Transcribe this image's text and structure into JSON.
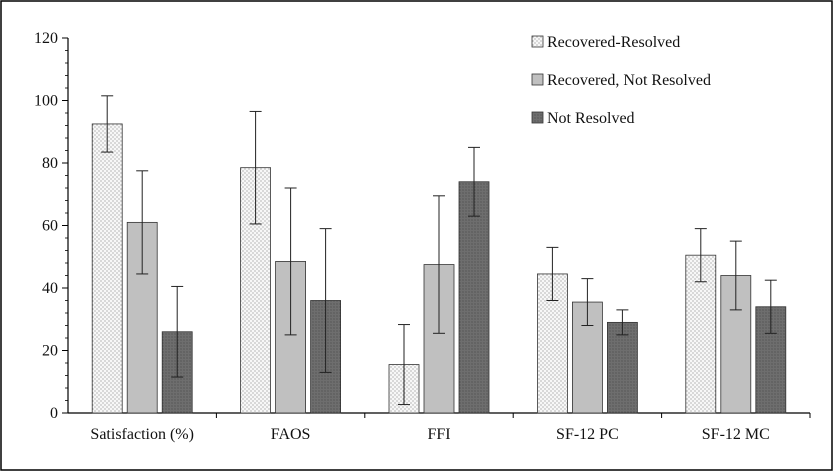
{
  "chart_data": {
    "type": "bar",
    "categories": [
      "Satisfaction (%)",
      "FAOS",
      "FFI",
      "SF-12 PC",
      "SF-12 MC"
    ],
    "series": [
      {
        "name": "Recovered-Resolved",
        "pattern": "dots",
        "fill": "#f2f2f2",
        "values": [
          92.5,
          78.5,
          15.5,
          44.5,
          50.5
        ],
        "error": [
          9.0,
          18.0,
          12.8,
          8.5,
          8.5
        ]
      },
      {
        "name": "Recovered, Not Resolved",
        "pattern": "solid",
        "fill": "#c0c0c0",
        "values": [
          61.0,
          48.5,
          47.5,
          35.5,
          44.0
        ],
        "error": [
          16.5,
          23.5,
          22.0,
          7.5,
          11.0
        ]
      },
      {
        "name": "Not Resolved",
        "pattern": "dark-dots",
        "fill": "#777777",
        "values": [
          26.0,
          36.0,
          74.0,
          29.0,
          34.0
        ],
        "error": [
          14.5,
          23.0,
          11.0,
          4.0,
          8.5
        ]
      }
    ],
    "yticks": [
      0,
      20,
      40,
      60,
      80,
      100,
      120
    ],
    "ylim": [
      0,
      120
    ],
    "grid": false,
    "legend": "top-right",
    "title": "",
    "xlabel": "",
    "ylabel": ""
  }
}
